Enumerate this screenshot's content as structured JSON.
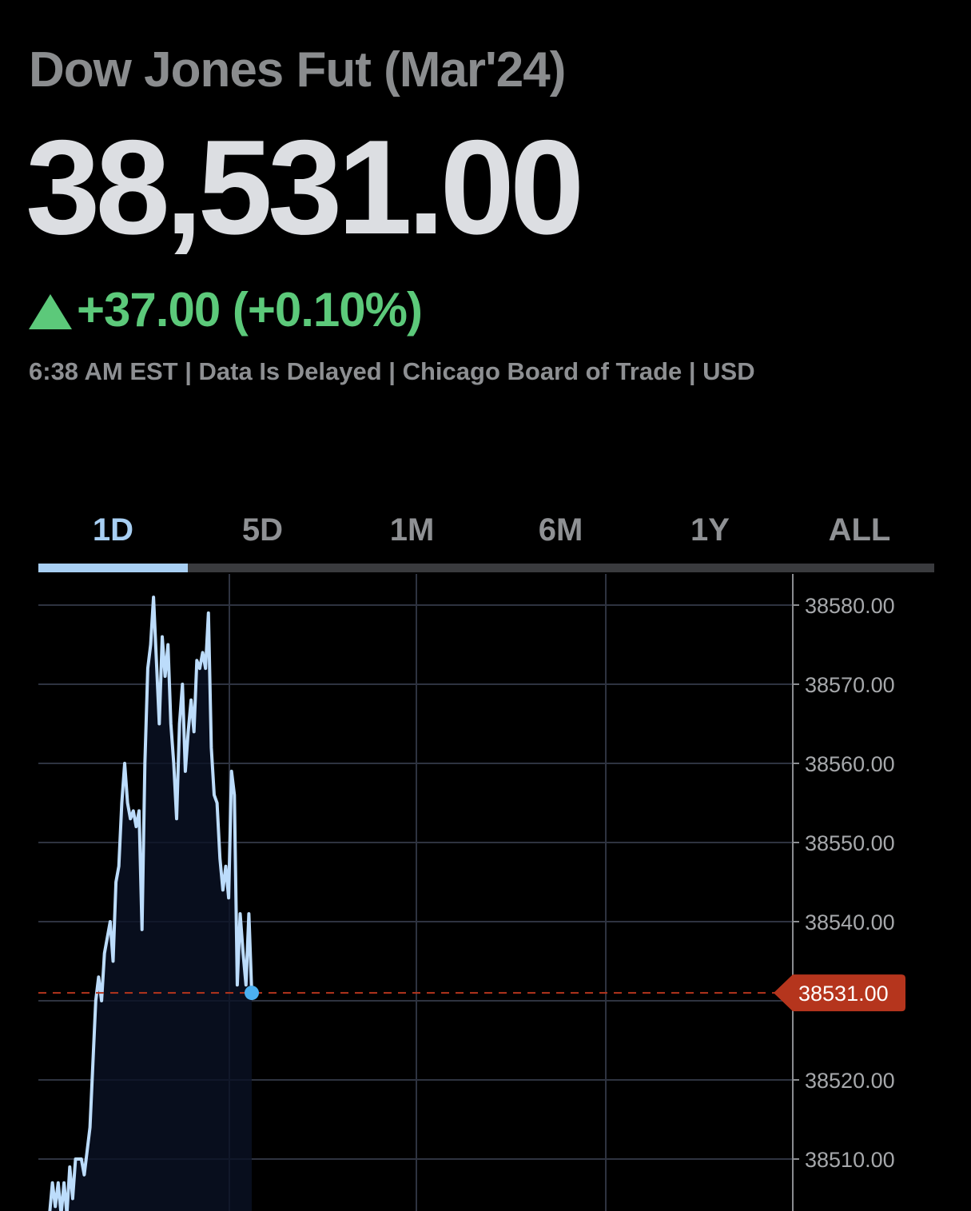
{
  "header": {
    "title": "Dow Jones Fut (Mar'24)",
    "price": "38,531.00",
    "change": "+37.00 (+0.10%)",
    "change_direction": "up",
    "meta": "6:38 AM EST | Data Is Delayed | Chicago Board of Trade | USD"
  },
  "tabs": [
    {
      "label": "1D",
      "active": true
    },
    {
      "label": "5D",
      "active": false
    },
    {
      "label": "1M",
      "active": false
    },
    {
      "label": "6M",
      "active": false
    },
    {
      "label": "1Y",
      "active": false
    },
    {
      "label": "ALL",
      "active": false
    }
  ],
  "colors": {
    "background": "#000000",
    "line": "#bcdcfb",
    "up": "#5cc97a",
    "current_price_tag": "#b5351d",
    "end_dot": "#4cb0f0",
    "tab_active": "#a8cff3"
  },
  "chart_data": {
    "type": "line",
    "title": "",
    "xlabel": "",
    "ylabel": "",
    "ylim": [
      38500,
      38584
    ],
    "y_ticks": [
      "38580.00",
      "38570.00",
      "38560.00",
      "38550.00",
      "38540.00",
      "38520.00",
      "38510.00"
    ],
    "y_tick_values": [
      38580,
      38570,
      38560,
      38550,
      38540,
      38520,
      38510
    ],
    "grid": true,
    "current_price": 38531,
    "current_price_label": "38531.00",
    "series": [
      {
        "values": [
          38503,
          38507,
          38504,
          38507,
          38503,
          38507,
          38503,
          38509,
          38505,
          38510,
          38510,
          38510,
          38508,
          38511,
          38514,
          38522,
          38530,
          38533,
          38530,
          38536,
          38538,
          38540,
          38535,
          38545,
          38547,
          38555,
          38560,
          38555,
          38553,
          38554,
          38552,
          38554,
          38539,
          38560,
          38572,
          38575,
          38581,
          38573,
          38565,
          38576,
          38571,
          38575,
          38565,
          38560,
          38553,
          38565,
          38570,
          38559,
          38564,
          38568,
          38564,
          38573,
          38572,
          38574,
          38572,
          38579,
          38562,
          38556,
          38555,
          38548,
          38544,
          38547,
          38543,
          38559,
          38556,
          38532,
          38541,
          38536,
          38532,
          38541,
          38531
        ]
      }
    ]
  }
}
